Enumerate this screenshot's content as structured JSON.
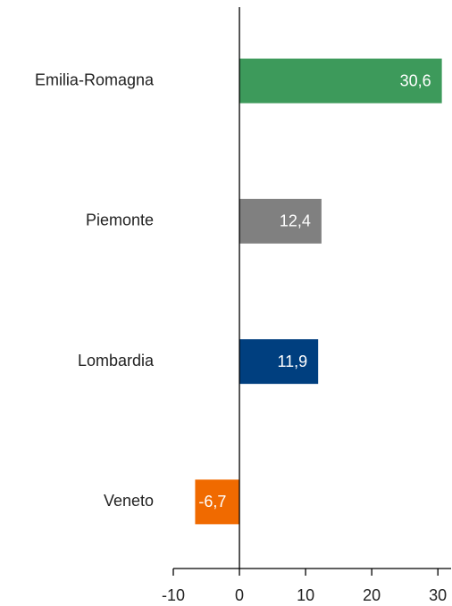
{
  "chart_data": {
    "type": "bar",
    "orientation": "horizontal",
    "categories": [
      "Emilia-Romagna",
      "Piemonte",
      "Lombardia",
      "Veneto"
    ],
    "values": [
      30.6,
      12.4,
      11.9,
      -6.7
    ],
    "value_labels": [
      "30,6",
      "12,4",
      "11,9",
      "-6,7"
    ],
    "colors": [
      "#3d9a5b",
      "#808080",
      "#003f7f",
      "#f06a00"
    ],
    "xlim": [
      -10,
      32
    ],
    "xticks": [
      -10,
      0,
      10,
      20,
      30
    ],
    "grid": false
  }
}
